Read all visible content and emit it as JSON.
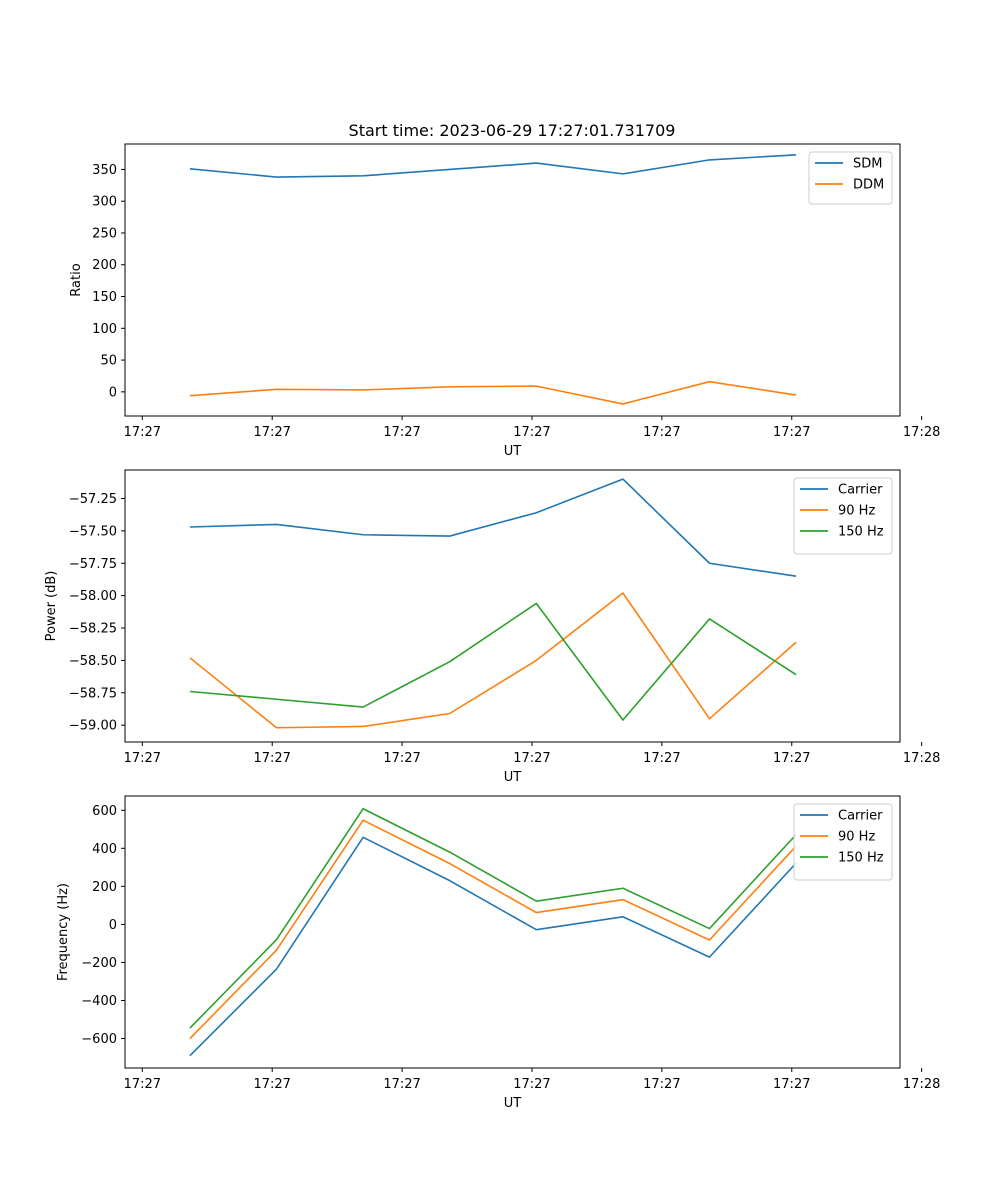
{
  "figure": {
    "title": "Start time: 2023-06-29 17:27:01.731709"
  },
  "chart_data": [
    {
      "type": "line",
      "title": "Start time: 2023-06-29 17:27:01.731709",
      "xlabel": "UT",
      "ylabel": "Ratio",
      "x_tick_labels": [
        "17:27",
        "17:27",
        "17:27",
        "17:27",
        "17:27",
        "17:27",
        "17:28"
      ],
      "x": [
        1,
        2,
        3,
        4,
        5,
        6,
        7,
        8
      ],
      "xlim": [
        0.25,
        9.2
      ],
      "x_ticks": [
        0.45,
        1.95,
        3.45,
        4.95,
        6.45,
        7.95,
        9.45
      ],
      "ylim": [
        -38,
        390
      ],
      "y_ticks": [
        0,
        50,
        100,
        150,
        200,
        250,
        300,
        350
      ],
      "legend": "top-right",
      "grid": false,
      "series": [
        {
          "name": "SDM",
          "color": "#1f77b4",
          "values": [
            351,
            338,
            340,
            350,
            360,
            343,
            365,
            373
          ]
        },
        {
          "name": "DDM",
          "color": "#ff7f0e",
          "values": [
            -6,
            4,
            3,
            8,
            9,
            -19,
            16,
            -5
          ]
        }
      ]
    },
    {
      "type": "line",
      "xlabel": "UT",
      "ylabel": "Power (dB)",
      "x_tick_labels": [
        "17:27",
        "17:27",
        "17:27",
        "17:27",
        "17:27",
        "17:27",
        "17:28"
      ],
      "x": [
        1,
        2,
        3,
        4,
        5,
        6,
        7,
        8
      ],
      "xlim": [
        0.25,
        9.2
      ],
      "x_ticks": [
        0.45,
        1.95,
        3.45,
        4.95,
        6.45,
        7.95,
        9.45
      ],
      "ylim": [
        -59.13,
        -57.03
      ],
      "y_ticks": [
        -59.0,
        -58.75,
        -58.5,
        -58.25,
        -58.0,
        -57.75,
        -57.5,
        -57.25
      ],
      "y_tick_labels": [
        "−59.00",
        "−58.75",
        "−58.50",
        "−58.25",
        "−58.00",
        "−57.75",
        "−57.50",
        "−57.25"
      ],
      "legend": "top-right",
      "grid": false,
      "series": [
        {
          "name": "Carrier",
          "color": "#1f77b4",
          "values": [
            -57.47,
            -57.45,
            -57.53,
            -57.54,
            -57.36,
            -57.1,
            -57.75,
            -57.85
          ]
        },
        {
          "name": "90 Hz",
          "color": "#ff7f0e",
          "values": [
            -58.48,
            -59.02,
            -59.01,
            -58.91,
            -58.5,
            -57.98,
            -58.95,
            -58.36
          ]
        },
        {
          "name": "150 Hz",
          "color": "#2ca02c",
          "values": [
            -58.74,
            -58.8,
            -58.86,
            -58.51,
            -58.06,
            -58.96,
            -58.18,
            -58.61
          ]
        }
      ]
    },
    {
      "type": "line",
      "xlabel": "UT",
      "ylabel": "Frequency (Hz)",
      "x_tick_labels": [
        "17:27",
        "17:27",
        "17:27",
        "17:27",
        "17:27",
        "17:27",
        "17:28"
      ],
      "x": [
        1,
        2,
        3,
        4,
        5,
        6,
        7,
        8
      ],
      "xlim": [
        0.25,
        9.2
      ],
      "x_ticks": [
        0.45,
        1.95,
        3.45,
        4.95,
        6.45,
        7.95,
        9.45
      ],
      "ylim": [
        -755,
        675
      ],
      "y_ticks": [
        -600,
        -400,
        -200,
        0,
        200,
        400,
        600
      ],
      "y_tick_labels": [
        "−600",
        "−400",
        "−200",
        "0",
        "200",
        "400",
        "600"
      ],
      "legend": "top-right",
      "grid": false,
      "series": [
        {
          "name": "Carrier",
          "color": "#1f77b4",
          "values": [
            -690,
            -235,
            458,
            230,
            -28,
            40,
            -172,
            322
          ]
        },
        {
          "name": "90 Hz",
          "color": "#ff7f0e",
          "values": [
            -600,
            -135,
            548,
            320,
            62,
            130,
            -82,
            412
          ]
        },
        {
          "name": "150 Hz",
          "color": "#2ca02c",
          "values": [
            -545,
            -80,
            608,
            380,
            122,
            190,
            -22,
            472
          ]
        }
      ]
    }
  ]
}
